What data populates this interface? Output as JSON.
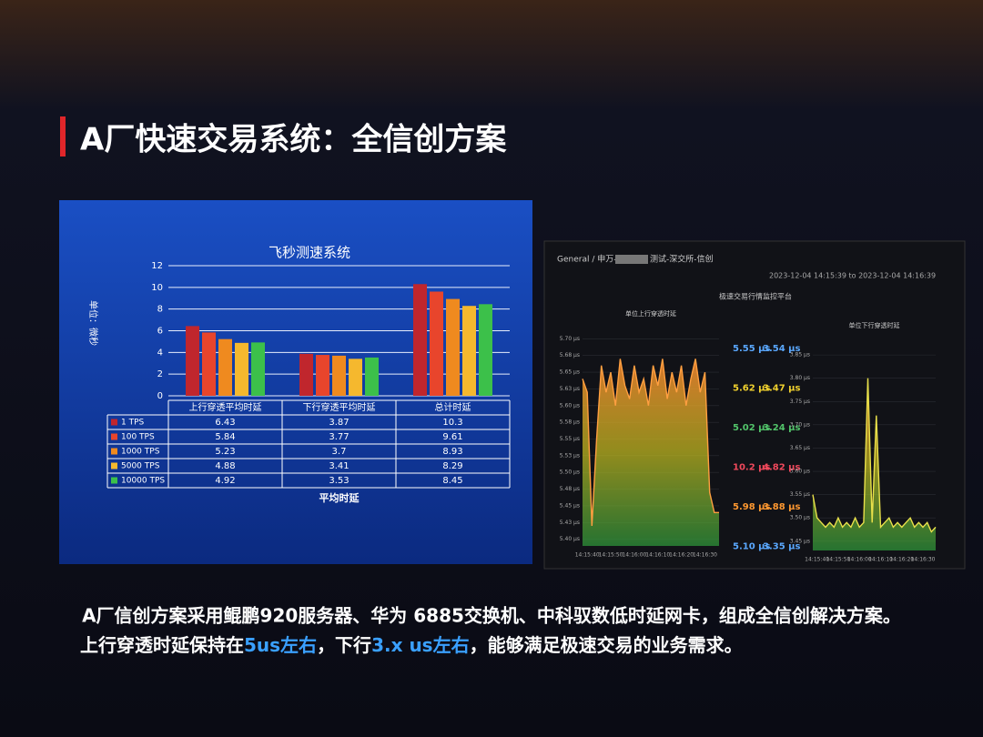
{
  "slide": {
    "title": "A厂快速交易系统：全信创方案",
    "caption_line1": "A厂信创方案采用鲲鹏920服务器、华为 6885交换机、中科驭数低时延网卡，组成全信创解决方案。",
    "caption_line2": [
      "上行穿透时延保持在",
      "5us左右",
      "，下行",
      "3.x us左右",
      "，能够满足极速交易的业务需求。"
    ]
  },
  "dashboard": {
    "breadcrumb_start": "General / 申万-",
    "breadcrumb_end": "测试-深交所-信创",
    "time_range": "2023-12-04 14:15:39 to 2023-12-04 14:16:39",
    "panel_title": "极速交易行情监控平台",
    "stats": [
      [
        {
          "text": "5.55 µs",
          "color": "#5aa8ff"
        },
        {
          "text": "3.54 µs",
          "color": "#5aa8ff"
        }
      ],
      [
        {
          "text": "5.62 µs",
          "color": "#f2d22e"
        },
        {
          "text": "3.47 µs",
          "color": "#f2d22e"
        }
      ],
      [
        {
          "text": "5.02 µs",
          "color": "#52c46a"
        },
        {
          "text": "3.24 µs",
          "color": "#52c46a"
        }
      ],
      [
        {
          "text": "10.2 µs",
          "color": "#f2495c"
        },
        {
          "text": "4.82 µs",
          "color": "#f2495c"
        }
      ],
      [
        {
          "text": "5.98 µs",
          "color": "#ff9830"
        },
        {
          "text": "3.88 µs",
          "color": "#ff9830"
        }
      ],
      [
        {
          "text": "5.10 µs",
          "color": "#5aa8ff"
        },
        {
          "text": "3.35 µs",
          "color": "#5aa8ff"
        }
      ]
    ]
  },
  "chart_data": [
    {
      "type": "bar",
      "title": "飞秒测速系统",
      "y_label": "单位：微秒",
      "x_label": "平均时延",
      "categories": [
        "上行穿透平均时延",
        "下行穿透平均时延",
        "总计时延"
      ],
      "series": [
        {
          "name": "1 TPS",
          "color": "#c0262d",
          "values": [
            6.43,
            3.87,
            10.3
          ]
        },
        {
          "name": "100 TPS",
          "color": "#e8452c",
          "values": [
            5.84,
            3.77,
            9.61
          ]
        },
        {
          "name": "1000 TPS",
          "color": "#ef8a1f",
          "values": [
            5.23,
            3.7,
            8.93
          ]
        },
        {
          "name": "5000 TPS",
          "color": "#f5b82e",
          "values": [
            4.88,
            3.41,
            8.29
          ]
        },
        {
          "name": "10000 TPS",
          "color": "#3cc04a",
          "values": [
            4.92,
            3.53,
            8.45
          ]
        }
      ],
      "ylim": [
        0,
        12
      ],
      "yticks": [
        0,
        2,
        4,
        6,
        8,
        10,
        12
      ],
      "grid": true
    },
    {
      "type": "line",
      "title": "单位上行穿透时延",
      "color": "#ff9f40",
      "categories": [
        null,
        "14:15:40",
        null,
        null,
        null,
        null,
        "14:15:50",
        null,
        null,
        null,
        null,
        "14:16:00",
        null,
        null,
        null,
        null,
        "14:16:10",
        null,
        null,
        null,
        null,
        "14:16:20",
        null,
        null,
        null,
        null,
        "14:16:30",
        null,
        null,
        null
      ],
      "values": [
        5.64,
        5.62,
        5.42,
        5.55,
        5.66,
        5.62,
        5.65,
        5.6,
        5.67,
        5.63,
        5.61,
        5.66,
        5.62,
        5.64,
        5.6,
        5.66,
        5.63,
        5.67,
        5.61,
        5.65,
        5.62,
        5.66,
        5.6,
        5.64,
        5.67,
        5.62,
        5.65,
        5.47,
        5.44,
        5.44
      ],
      "ylim": [
        5.39,
        5.71
      ],
      "yticks": [
        {
          "value": 5.4,
          "label": "5.40 µs"
        },
        {
          "value": 5.425,
          "label": "5.43 µs"
        },
        {
          "value": 5.45,
          "label": "5.45 µs"
        },
        {
          "value": 5.475,
          "label": "5.48 µs"
        },
        {
          "value": 5.5,
          "label": "5.50 µs"
        },
        {
          "value": 5.525,
          "label": "5.53 µs"
        },
        {
          "value": 5.55,
          "label": "5.55 µs"
        },
        {
          "value": 5.575,
          "label": "5.58 µs"
        },
        {
          "value": 5.6,
          "label": "5.60 µs"
        },
        {
          "value": 5.625,
          "label": "5.63 µs"
        },
        {
          "value": 5.65,
          "label": "5.65 µs"
        },
        {
          "value": 5.675,
          "label": "5.68 µs"
        },
        {
          "value": 5.7,
          "label": "5.70 µs"
        }
      ],
      "grid": true
    },
    {
      "type": "line",
      "title": "单位下行穿透时延",
      "color": "#e8e04a",
      "categories": [
        null,
        "14:15:40",
        null,
        null,
        null,
        null,
        "14:15:50",
        null,
        null,
        null,
        null,
        "14:16:00",
        null,
        null,
        null,
        null,
        "14:16:10",
        null,
        null,
        null,
        null,
        "14:16:20",
        null,
        null,
        null,
        null,
        "14:16:30",
        null,
        null,
        null
      ],
      "values": [
        3.55,
        3.5,
        3.49,
        3.48,
        3.49,
        3.48,
        3.5,
        3.48,
        3.49,
        3.48,
        3.5,
        3.48,
        3.49,
        3.8,
        3.49,
        3.72,
        3.48,
        3.49,
        3.5,
        3.48,
        3.49,
        3.48,
        3.49,
        3.5,
        3.48,
        3.49,
        3.48,
        3.49,
        3.47,
        3.48
      ],
      "ylim": [
        3.43,
        3.86
      ],
      "yticks": [
        {
          "value": 3.45,
          "label": "3.45 µs"
        },
        {
          "value": 3.5,
          "label": "3.50 µs"
        },
        {
          "value": 3.55,
          "label": "3.55 µs"
        },
        {
          "value": 3.6,
          "label": "3.60 µs"
        },
        {
          "value": 3.65,
          "label": "3.65 µs"
        },
        {
          "value": 3.7,
          "label": "3.70 µs"
        },
        {
          "value": 3.75,
          "label": "3.75 µs"
        },
        {
          "value": 3.8,
          "label": "3.80 µs"
        },
        {
          "value": 3.85,
          "label": "3.85 µs"
        }
      ],
      "grid": true
    }
  ]
}
